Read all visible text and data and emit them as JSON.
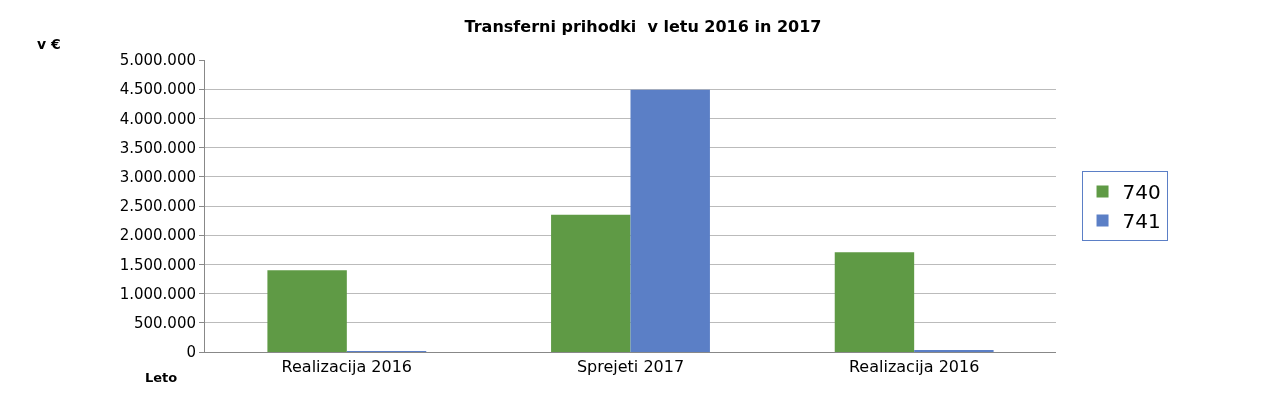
{
  "chart_data": {
    "type": "bar",
    "title": "Transferni prihodki  v letu 2016 in 2017",
    "ylabel": "v €",
    "xlabel": "Leto",
    "categories": [
      "Realizacija 2016",
      "Sprejeti 2017",
      "Realizacija 2016"
    ],
    "series": [
      {
        "name": "740",
        "color": "#5f9a45",
        "values": [
          1400000,
          2350000,
          1710000
        ]
      },
      {
        "name": "741",
        "color": "#5b7fc6",
        "values": [
          10000,
          4490000,
          30000
        ]
      }
    ],
    "ylim": [
      0,
      5000000
    ],
    "yticks": [
      {
        "value": 0,
        "label": "0"
      },
      {
        "value": 500000,
        "label": "500.000"
      },
      {
        "value": 1000000,
        "label": "1.000.000"
      },
      {
        "value": 1500000,
        "label": "1.500.000"
      },
      {
        "value": 2000000,
        "label": "2.000.000"
      },
      {
        "value": 2500000,
        "label": "2.500.000"
      },
      {
        "value": 3000000,
        "label": "3.000.000"
      },
      {
        "value": 3500000,
        "label": "3.500.000"
      },
      {
        "value": 4000000,
        "label": "4.000.000"
      },
      {
        "value": 4500000,
        "label": "4.500.000"
      },
      {
        "value": 5000000,
        "label": "5.000.000"
      }
    ],
    "grid": "y",
    "legend": "right"
  }
}
